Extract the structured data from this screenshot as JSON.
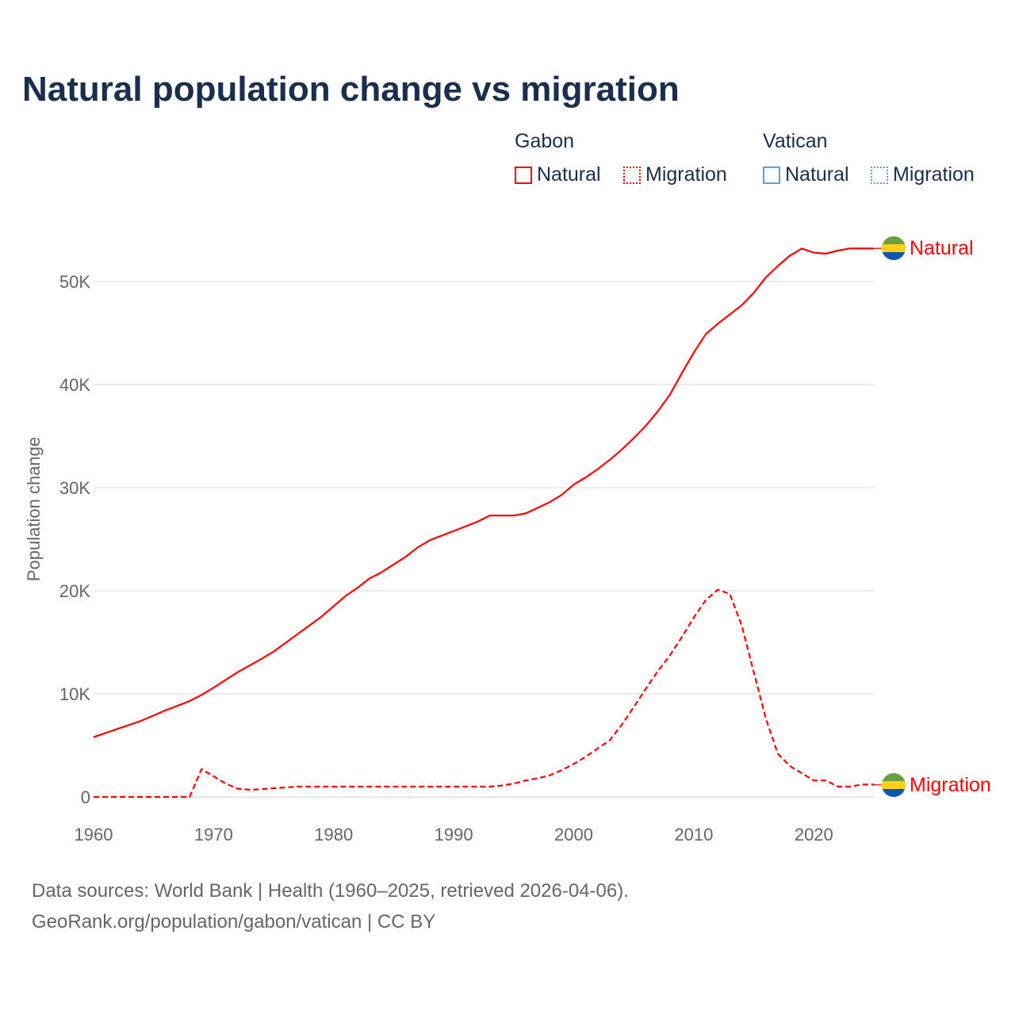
{
  "chart_data": {
    "type": "line",
    "title": "Natural population change vs migration",
    "xlabel": "",
    "ylabel": "Population change",
    "xlim": [
      1960,
      2025
    ],
    "ylim": [
      0,
      55000
    ],
    "x_ticks": [
      "1960",
      "1970",
      "1980",
      "1990",
      "2000",
      "2010",
      "2020"
    ],
    "y_ticks": [
      {
        "v": 0,
        "label": "0"
      },
      {
        "v": 10000,
        "label": "10K"
      },
      {
        "v": 20000,
        "label": "20K"
      },
      {
        "v": 30000,
        "label": "30K"
      },
      {
        "v": 40000,
        "label": "40K"
      },
      {
        "v": 50000,
        "label": "50K"
      }
    ],
    "grid": true,
    "legend": {
      "placement": "top-right",
      "groups": [
        {
          "name": "Gabon",
          "color": "#ff0000",
          "items": [
            "Natural",
            "Migration"
          ]
        },
        {
          "name": "Vatican",
          "color": "#5a9fe0",
          "items": [
            "Natural",
            "Migration"
          ]
        }
      ]
    },
    "series": [
      {
        "name": "Natural",
        "country": "Gabon",
        "style": "solid",
        "color": "#ff0000",
        "end_label": "Natural",
        "points": [
          [
            1960,
            5800
          ],
          [
            1962,
            6600
          ],
          [
            1964,
            7400
          ],
          [
            1966,
            8400
          ],
          [
            1968,
            9300
          ],
          [
            1969,
            9900
          ],
          [
            1970,
            10600
          ],
          [
            1972,
            12100
          ],
          [
            1974,
            13400
          ],
          [
            1975,
            14100
          ],
          [
            1977,
            15800
          ],
          [
            1979,
            17500
          ],
          [
            1981,
            19500
          ],
          [
            1982,
            20300
          ],
          [
            1983,
            21200
          ],
          [
            1984,
            21800
          ],
          [
            1986,
            23300
          ],
          [
            1987,
            24200
          ],
          [
            1988,
            24900
          ],
          [
            1990,
            25800
          ],
          [
            1992,
            26700
          ],
          [
            1993,
            27300
          ],
          [
            1995,
            27300
          ],
          [
            1996,
            27500
          ],
          [
            1998,
            28600
          ],
          [
            1999,
            29300
          ],
          [
            2000,
            30300
          ],
          [
            2001,
            31000
          ],
          [
            2002,
            31800
          ],
          [
            2003,
            32700
          ],
          [
            2004,
            33700
          ],
          [
            2005,
            34800
          ],
          [
            2006,
            36000
          ],
          [
            2007,
            37400
          ],
          [
            2008,
            39000
          ],
          [
            2009,
            41100
          ],
          [
            2010,
            43100
          ],
          [
            2011,
            44900
          ],
          [
            2012,
            45900
          ],
          [
            2013,
            46800
          ],
          [
            2014,
            47700
          ],
          [
            2015,
            48900
          ],
          [
            2016,
            50400
          ],
          [
            2017,
            51500
          ],
          [
            2018,
            52500
          ],
          [
            2019,
            53200
          ],
          [
            2020,
            52800
          ],
          [
            2021,
            52700
          ],
          [
            2022,
            53000
          ],
          [
            2023,
            53200
          ],
          [
            2024,
            53200
          ],
          [
            2025,
            53200
          ]
        ]
      },
      {
        "name": "Migration",
        "country": "Gabon",
        "style": "dashed",
        "color": "#ff0000",
        "end_label": "Migration",
        "points": [
          [
            1960,
            0
          ],
          [
            1968,
            0
          ],
          [
            1969,
            2700
          ],
          [
            1970,
            2000
          ],
          [
            1971,
            1300
          ],
          [
            1972,
            800
          ],
          [
            1973,
            700
          ],
          [
            1974,
            750
          ],
          [
            1975,
            850
          ],
          [
            1977,
            1000
          ],
          [
            1980,
            1000
          ],
          [
            1993,
            1000
          ],
          [
            1994,
            1100
          ],
          [
            1995,
            1300
          ],
          [
            1996,
            1600
          ],
          [
            1997,
            1800
          ],
          [
            1998,
            2100
          ],
          [
            1999,
            2600
          ],
          [
            2000,
            3200
          ],
          [
            2001,
            3900
          ],
          [
            2002,
            4700
          ],
          [
            2003,
            5500
          ],
          [
            2004,
            7000
          ],
          [
            2005,
            8700
          ],
          [
            2006,
            10500
          ],
          [
            2007,
            12200
          ],
          [
            2008,
            13700
          ],
          [
            2009,
            15500
          ],
          [
            2010,
            17400
          ],
          [
            2011,
            19100
          ],
          [
            2012,
            20100
          ],
          [
            2013,
            19700
          ],
          [
            2014,
            16600
          ],
          [
            2015,
            12100
          ],
          [
            2016,
            7600
          ],
          [
            2017,
            4200
          ],
          [
            2018,
            3000
          ],
          [
            2019,
            2300
          ],
          [
            2020,
            1600
          ],
          [
            2021,
            1600
          ],
          [
            2022,
            1000
          ],
          [
            2023,
            1000
          ],
          [
            2024,
            1200
          ],
          [
            2025,
            1200
          ]
        ]
      }
    ]
  },
  "footer": {
    "source": "Data sources: World Bank | Health (1960–2025, retrieved 2026-04-06).",
    "credit": "GeoRank.org/population/gabon/vatican | CC BY"
  }
}
